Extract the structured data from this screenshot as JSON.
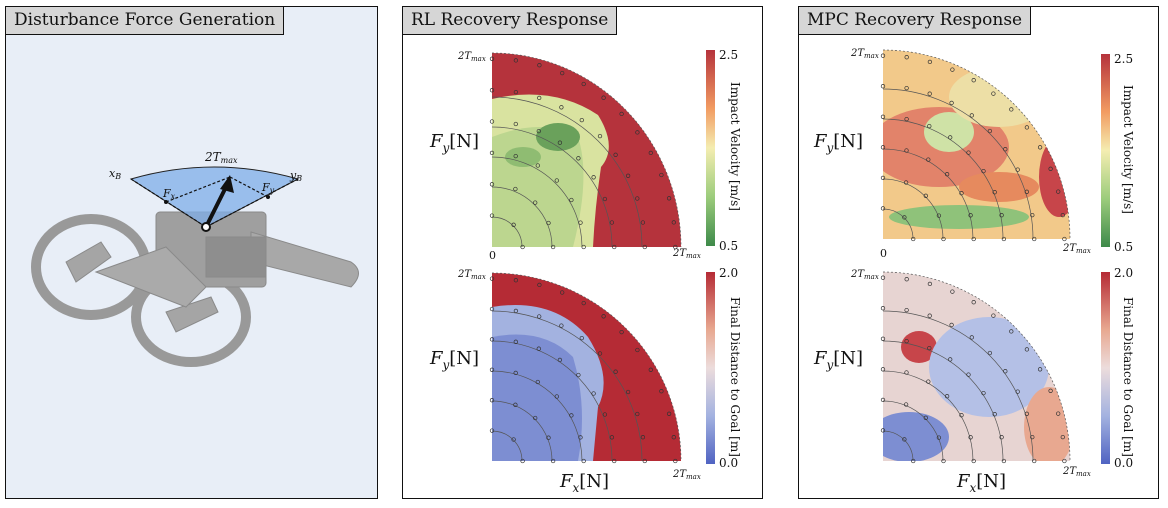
{
  "panels": [
    {
      "title": "Disturbance Force Generation"
    },
    {
      "title": "RL Recovery Response"
    },
    {
      "title": "MPC Recovery Response"
    }
  ],
  "diagram": {
    "arc_label_main": "2T",
    "arc_label_sub": "max",
    "axis_x": "x",
    "axis_x_sub": "B",
    "axis_y": "y",
    "axis_y_sub": "B",
    "force_x": "F",
    "force_x_sub": "x",
    "force_y": "F",
    "force_y_sub": "y"
  },
  "plots": {
    "fy_label": "F",
    "fy_sub": "y",
    "fy_unit": "[N]",
    "fx_label": "F",
    "fx_sub": "x",
    "fx_unit": "[N]",
    "tick_main": "2T",
    "tick_sub": "max",
    "zero": "0",
    "colorbar_velocity": {
      "label": "Impact Velocity [m/s]",
      "min": "0.5",
      "max": "2.5"
    },
    "colorbar_distance": {
      "label": "Final Distance to Goal [m]",
      "min": "0.0",
      "max": "2.0"
    }
  },
  "colors": {
    "rdylgn_high": "#b5333c",
    "rdylgn_mid": "#f4edb1",
    "rdylgn_low": "#3e8a4a",
    "coolwarm_high": "#b52b35",
    "coolwarm_mid": "#ecdcdc",
    "coolwarm_low": "#5063c2",
    "diagram_bg": "#e8eef7"
  }
}
